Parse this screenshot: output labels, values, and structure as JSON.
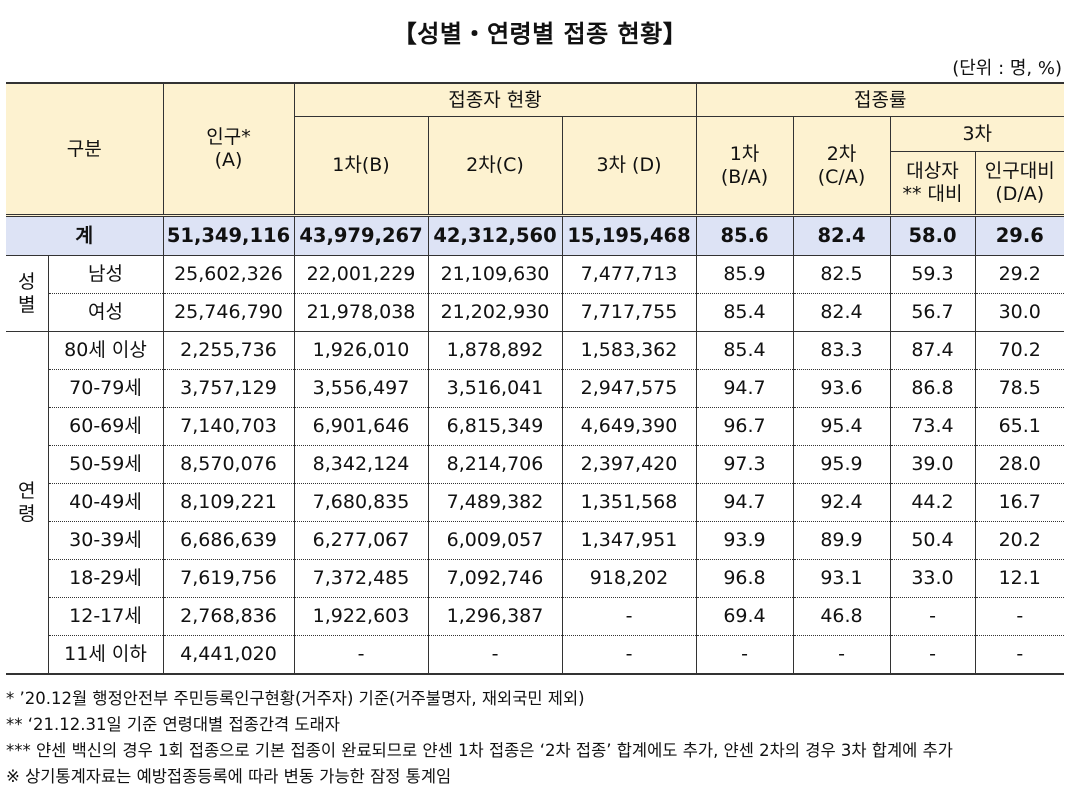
{
  "title": "【성별・연령별 접종 현황】",
  "unit": "(단위 : 명, %)",
  "header": {
    "category": "구분",
    "population": "인구*",
    "population_sub": "(A)",
    "vaccinated_group": "접종자 현황",
    "rate_group": "접종률",
    "first": "1차(B)",
    "second": "2차(C)",
    "third": "3차 (D)",
    "rate_first_a": "1차",
    "rate_first_b": "(B/A)",
    "rate_second_a": "2차",
    "rate_second_b": "(C/A)",
    "rate_third": "3차",
    "target_a": "대상자",
    "target_b": "** 대비",
    "popratio_a": "인구대비",
    "popratio_b": "(D/A)"
  },
  "total": {
    "label": "계",
    "values": [
      "51,349,116",
      "43,979,267",
      "42,312,560",
      "15,195,468",
      "85.6",
      "82.4",
      "58.0",
      "29.6"
    ]
  },
  "sex_group": {
    "label": "성별"
  },
  "sex_rows": [
    {
      "label": "남성",
      "values": [
        "25,602,326",
        "22,001,229",
        "21,109,630",
        "7,477,713",
        "85.9",
        "82.5",
        "59.3",
        "29.2"
      ]
    },
    {
      "label": "여성",
      "values": [
        "25,746,790",
        "21,978,038",
        "21,202,930",
        "7,717,755",
        "85.4",
        "82.4",
        "56.7",
        "30.0"
      ]
    }
  ],
  "age_group": {
    "label": "연령"
  },
  "age_rows": [
    {
      "label": "80세 이상",
      "values": [
        "2,255,736",
        "1,926,010",
        "1,878,892",
        "1,583,362",
        "85.4",
        "83.3",
        "87.4",
        "70.2"
      ]
    },
    {
      "label": "70-79세",
      "values": [
        "3,757,129",
        "3,556,497",
        "3,516,041",
        "2,947,575",
        "94.7",
        "93.6",
        "86.8",
        "78.5"
      ]
    },
    {
      "label": "60-69세",
      "values": [
        "7,140,703",
        "6,901,646",
        "6,815,349",
        "4,649,390",
        "96.7",
        "95.4",
        "73.4",
        "65.1"
      ]
    },
    {
      "label": "50-59세",
      "values": [
        "8,570,076",
        "8,342,124",
        "8,214,706",
        "2,397,420",
        "97.3",
        "95.9",
        "39.0",
        "28.0"
      ]
    },
    {
      "label": "40-49세",
      "values": [
        "8,109,221",
        "7,680,835",
        "7,489,382",
        "1,351,568",
        "94.7",
        "92.4",
        "44.2",
        "16.7"
      ]
    },
    {
      "label": "30-39세",
      "values": [
        "6,686,639",
        "6,277,067",
        "6,009,057",
        "1,347,951",
        "93.9",
        "89.9",
        "50.4",
        "20.2"
      ]
    },
    {
      "label": "18-29세",
      "values": [
        "7,619,756",
        "7,372,485",
        "7,092,746",
        "918,202",
        "96.8",
        "93.1",
        "33.0",
        "12.1"
      ]
    },
    {
      "label": "12-17세",
      "values": [
        "2,768,836",
        "1,922,603",
        "1,296,387",
        "-",
        "69.4",
        "46.8",
        "-",
        "-"
      ]
    },
    {
      "label": "11세 이하",
      "values": [
        "4,441,020",
        "-",
        "-",
        "-",
        "-",
        "-",
        "-",
        "-"
      ]
    }
  ],
  "notes": [
    "* ’20.12월 행정안전부 주민등록인구현황(거주자) 기준(거주불명자, 재외국민 제외)",
    "** ‘21.12.31일 기준 연령대별 접종간격 도래자",
    "*** 얀센 백신의 경우 1회 접종으로 기본 접종이 완료되므로 얀센 1차 접종은 ‘2차 접종’ 합계에도 추가, 얀센 2차의 경우 3차 합계에 추가",
    "※ 상기통계자료는 예방접종등록에 따라 변동 가능한 잠정 통계임"
  ]
}
